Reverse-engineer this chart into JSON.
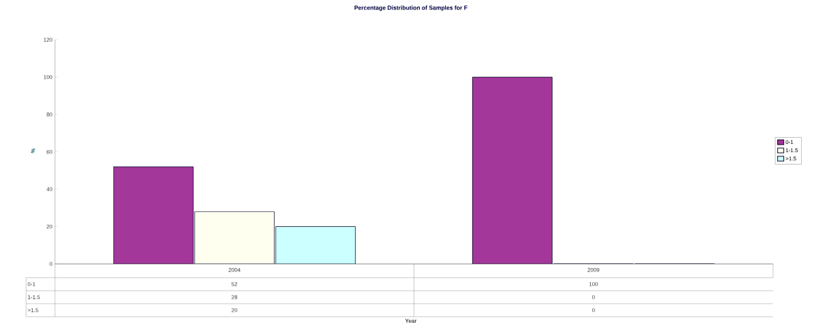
{
  "chart_data": {
    "type": "bar",
    "title": "Percentage Distribution of Samples for F",
    "annotations": [
      "Year"
    ],
    "ylabel": "%",
    "categories": [
      "2004",
      "2009"
    ],
    "series": [
      {
        "name": "0-1",
        "color": "#a3379a",
        "values": [
          52,
          100
        ]
      },
      {
        "name": "1-1.5",
        "color": "#fffff0",
        "values": [
          28,
          0
        ]
      },
      {
        "name": ">1.5",
        "color": "#ccffff",
        "values": [
          20,
          0
        ]
      }
    ],
    "ylim": [
      0,
      120
    ],
    "yticks": [
      0,
      20,
      40,
      60,
      80,
      100,
      120
    ],
    "legend": "right",
    "data_labels": true
  }
}
